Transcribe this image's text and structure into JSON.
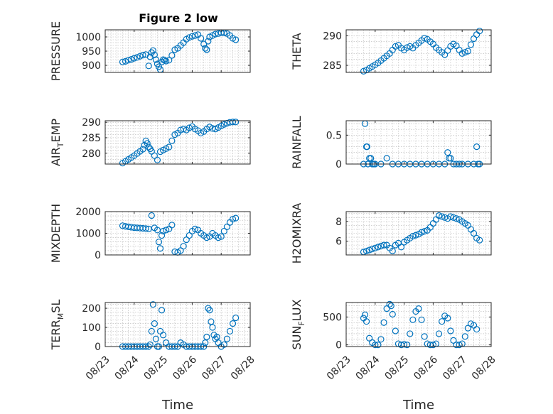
{
  "figure": {
    "title": "Figure 2 low"
  },
  "colors": {
    "marker": "#0072bd",
    "axis": "#262626",
    "grid": "#b4b4b4"
  },
  "chart_data": [
    {
      "type": "scatter",
      "ylabel": "PRESSURE",
      "xlabel": "",
      "title": "Figure 2 low",
      "xlim": [
        0,
        5
      ],
      "ylim": [
        875,
        1025
      ],
      "yticks": [
        900,
        950,
        1000
      ],
      "xticklabels": [],
      "grid": true,
      "x": [
        0.6,
        0.7,
        0.8,
        0.9,
        1.0,
        1.1,
        1.2,
        1.3,
        1.4,
        1.5,
        1.55,
        1.6,
        1.65,
        1.7,
        1.75,
        1.8,
        1.85,
        1.9,
        1.95,
        2.0,
        2.05,
        2.1,
        2.2,
        2.3,
        2.4,
        2.5,
        2.6,
        2.7,
        2.8,
        2.9,
        3.0,
        3.1,
        3.2,
        3.3,
        3.4,
        3.45,
        3.5,
        3.55,
        3.6,
        3.7,
        3.8,
        3.9,
        4.0,
        4.1,
        4.2,
        4.3,
        4.4,
        4.5
      ],
      "y": [
        912,
        914,
        918,
        921,
        925,
        928,
        932,
        936,
        938,
        898,
        930,
        945,
        952,
        937,
        920,
        905,
        895,
        885,
        912,
        920,
        918,
        915,
        918,
        935,
        955,
        960,
        970,
        980,
        992,
        998,
        1002,
        1005,
        1008,
        995,
        975,
        960,
        955,
        985,
        1000,
        1005,
        1010,
        1012,
        1015,
        1014,
        1012,
        1005,
        995,
        990
      ]
    },
    {
      "type": "scatter",
      "ylabel": "THETA",
      "xlabel": "",
      "xlim": [
        0,
        5
      ],
      "ylim": [
        283.8,
        291
      ],
      "yticks": [
        285,
        290
      ],
      "xticklabels": [],
      "grid": true,
      "x": [
        0.6,
        0.7,
        0.8,
        0.9,
        1.0,
        1.1,
        1.2,
        1.3,
        1.4,
        1.5,
        1.6,
        1.7,
        1.8,
        1.9,
        2.0,
        2.1,
        2.2,
        2.3,
        2.4,
        2.5,
        2.6,
        2.7,
        2.8,
        2.9,
        3.0,
        3.1,
        3.2,
        3.3,
        3.4,
        3.5,
        3.6,
        3.7,
        3.8,
        3.9,
        4.0,
        4.1,
        4.2,
        4.3,
        4.4,
        4.5,
        4.6
      ],
      "y": [
        284.0,
        284.2,
        284.5,
        284.8,
        285.1,
        285.4,
        285.8,
        286.2,
        286.6,
        287.0,
        287.6,
        288.2,
        288.4,
        287.9,
        287.6,
        288.0,
        288.2,
        287.9,
        288.4,
        288.8,
        289.2,
        289.6,
        289.4,
        289.0,
        288.6,
        288.0,
        287.6,
        287.2,
        286.8,
        287.5,
        288.2,
        288.6,
        288.3,
        287.6,
        287.0,
        287.2,
        287.4,
        288.5,
        289.5,
        290.2,
        290.8
      ]
    },
    {
      "type": "scatter",
      "ylabel": "AIR_TEMP",
      "xlabel": "",
      "xlim": [
        0,
        5
      ],
      "ylim": [
        276.5,
        290.5
      ],
      "yticks": [
        280,
        285,
        290
      ],
      "xticklabels": [],
      "grid": true,
      "x": [
        0.6,
        0.7,
        0.8,
        0.9,
        1.0,
        1.1,
        1.2,
        1.3,
        1.35,
        1.4,
        1.45,
        1.5,
        1.55,
        1.6,
        1.7,
        1.8,
        1.9,
        2.0,
        2.1,
        2.2,
        2.3,
        2.4,
        2.5,
        2.6,
        2.7,
        2.8,
        2.9,
        3.0,
        3.1,
        3.2,
        3.3,
        3.4,
        3.5,
        3.6,
        3.7,
        3.8,
        3.9,
        4.0,
        4.1,
        4.2,
        4.3,
        4.4,
        4.5
      ],
      "y": [
        276.8,
        277.4,
        278.0,
        278.6,
        279.2,
        279.9,
        280.6,
        281.3,
        282.6,
        284.0,
        283.2,
        282.0,
        281.4,
        280.6,
        279.2,
        277.8,
        280.5,
        281.0,
        281.5,
        282.0,
        284.0,
        286.0,
        286.5,
        287.5,
        287.8,
        287.5,
        288.2,
        288.6,
        287.8,
        287.3,
        286.5,
        287.0,
        287.8,
        288.5,
        288.0,
        287.8,
        288.3,
        288.8,
        289.3,
        289.7,
        290.0,
        290.1,
        290.1
      ]
    },
    {
      "type": "scatter",
      "ylabel": "RAINFALL",
      "xlabel": "",
      "xlim": [
        0,
        5
      ],
      "ylim": [
        0,
        0.75
      ],
      "yticks": [
        0,
        0.5
      ],
      "xticklabels": [],
      "grid": true,
      "x": [
        0.6,
        0.65,
        0.7,
        0.72,
        0.75,
        0.8,
        0.85,
        0.9,
        0.95,
        1.0,
        1.2,
        1.4,
        1.6,
        1.8,
        2.0,
        2.2,
        2.4,
        2.6,
        2.8,
        3.0,
        3.2,
        3.4,
        3.5,
        3.55,
        3.6,
        3.7,
        3.8,
        3.9,
        4.0,
        4.2,
        4.4,
        4.5,
        4.55,
        4.6
      ],
      "y": [
        0,
        0.7,
        0.3,
        0.3,
        0,
        0.1,
        0.1,
        0,
        0,
        0,
        0,
        0.1,
        0,
        0,
        0,
        0,
        0,
        0,
        0,
        0,
        0,
        0,
        0.2,
        0.1,
        0.1,
        0,
        0,
        0,
        0,
        0,
        0,
        0.3,
        0,
        0
      ]
    },
    {
      "type": "scatter",
      "ylabel": "MIXDEPTH",
      "xlabel": "",
      "xlim": [
        0,
        5
      ],
      "ylim": [
        0,
        2000
      ],
      "yticks": [
        0,
        1000,
        2000
      ],
      "xticklabels": [],
      "grid": true,
      "x": [
        0.6,
        0.7,
        0.8,
        0.9,
        1.0,
        1.1,
        1.2,
        1.3,
        1.4,
        1.5,
        1.6,
        1.7,
        1.8,
        1.85,
        1.9,
        1.95,
        2.0,
        2.1,
        2.2,
        2.3,
        2.4,
        2.5,
        2.6,
        2.7,
        2.8,
        2.9,
        3.0,
        3.1,
        3.2,
        3.3,
        3.4,
        3.5,
        3.6,
        3.7,
        3.8,
        3.9,
        4.0,
        4.1,
        4.2,
        4.3,
        4.4,
        4.5
      ],
      "y": [
        1350,
        1320,
        1300,
        1280,
        1260,
        1250,
        1240,
        1230,
        1220,
        1200,
        1820,
        1250,
        1150,
        600,
        300,
        900,
        1100,
        1150,
        1200,
        1380,
        150,
        120,
        200,
        400,
        700,
        900,
        1100,
        1200,
        1150,
        1000,
        900,
        800,
        850,
        1000,
        900,
        800,
        850,
        1100,
        1300,
        1500,
        1650,
        1700
      ]
    },
    {
      "type": "scatter",
      "ylabel": "H2OMIXRA",
      "xlabel": "",
      "xlim": [
        0,
        5
      ],
      "ylim": [
        4.6,
        9
      ],
      "yticks": [
        6,
        8
      ],
      "xticklabels": [],
      "grid": true,
      "x": [
        0.6,
        0.7,
        0.8,
        0.9,
        1.0,
        1.1,
        1.2,
        1.3,
        1.4,
        1.5,
        1.6,
        1.7,
        1.8,
        1.9,
        2.0,
        2.1,
        2.2,
        2.3,
        2.4,
        2.5,
        2.6,
        2.7,
        2.8,
        2.9,
        3.0,
        3.1,
        3.2,
        3.3,
        3.4,
        3.5,
        3.6,
        3.7,
        3.8,
        3.9,
        4.0,
        4.1,
        4.2,
        4.3,
        4.4,
        4.5,
        4.6
      ],
      "y": [
        4.9,
        5.0,
        5.1,
        5.2,
        5.3,
        5.4,
        5.5,
        5.6,
        5.6,
        5.3,
        5.0,
        5.6,
        5.8,
        5.4,
        5.9,
        6.1,
        6.3,
        6.5,
        6.6,
        6.7,
        6.9,
        7.0,
        7.1,
        7.4,
        7.8,
        8.2,
        8.6,
        8.5,
        8.4,
        8.3,
        8.5,
        8.4,
        8.3,
        8.2,
        8.0,
        7.8,
        7.6,
        7.2,
        6.8,
        6.3,
        6.1
      ]
    },
    {
      "type": "scatter",
      "ylabel": "TERR_MSL",
      "xlabel": "Time",
      "xlim": [
        0,
        5
      ],
      "ylim": [
        0,
        230
      ],
      "yticks": [
        0,
        100,
        200
      ],
      "xticklabels": [
        "08/23",
        "08/24",
        "08/25",
        "08/26",
        "08/27",
        "08/28"
      ],
      "grid": true,
      "x": [
        0.6,
        0.7,
        0.8,
        0.9,
        1.0,
        1.1,
        1.2,
        1.3,
        1.4,
        1.5,
        1.55,
        1.6,
        1.65,
        1.7,
        1.75,
        1.8,
        1.85,
        1.9,
        1.95,
        2.0,
        2.1,
        2.2,
        2.3,
        2.4,
        2.5,
        2.6,
        2.7,
        2.8,
        2.9,
        3.0,
        3.1,
        3.2,
        3.3,
        3.4,
        3.45,
        3.5,
        3.55,
        3.6,
        3.65,
        3.7,
        3.75,
        3.8,
        3.85,
        3.9,
        4.0,
        4.1,
        4.2,
        4.3,
        4.4,
        4.5
      ],
      "y": [
        0,
        0,
        0,
        0,
        0,
        0,
        0,
        0,
        0,
        0,
        10,
        80,
        220,
        120,
        40,
        0,
        0,
        80,
        190,
        60,
        20,
        0,
        0,
        0,
        0,
        20,
        10,
        0,
        0,
        0,
        0,
        0,
        0,
        0,
        20,
        50,
        200,
        190,
        130,
        100,
        60,
        40,
        50,
        20,
        0,
        10,
        40,
        80,
        120,
        150
      ]
    },
    {
      "type": "scatter",
      "ylabel": "SUN_FLUX",
      "xlabel": "Time",
      "xlim": [
        0,
        5
      ],
      "ylim": [
        -30,
        760
      ],
      "yticks": [
        0,
        500
      ],
      "xticklabels": [
        "08/23",
        "08/24",
        "08/25",
        "08/26",
        "08/27",
        "08/28"
      ],
      "grid": true,
      "x": [
        0.6,
        0.65,
        0.7,
        0.8,
        0.9,
        1.0,
        1.1,
        1.2,
        1.3,
        1.4,
        1.5,
        1.55,
        1.6,
        1.7,
        1.8,
        1.9,
        2.0,
        2.1,
        2.2,
        2.3,
        2.4,
        2.5,
        2.6,
        2.7,
        2.8,
        2.9,
        3.0,
        3.1,
        3.2,
        3.3,
        3.4,
        3.5,
        3.6,
        3.7,
        3.8,
        3.9,
        4.0,
        4.1,
        4.2,
        4.3,
        4.4,
        4.5
      ],
      "y": [
        480,
        540,
        420,
        120,
        40,
        0,
        0,
        100,
        400,
        650,
        730,
        700,
        550,
        250,
        20,
        0,
        10,
        0,
        200,
        450,
        600,
        650,
        450,
        150,
        20,
        0,
        0,
        20,
        200,
        420,
        520,
        480,
        250,
        80,
        0,
        0,
        20,
        150,
        300,
        380,
        350,
        280
      ]
    }
  ]
}
